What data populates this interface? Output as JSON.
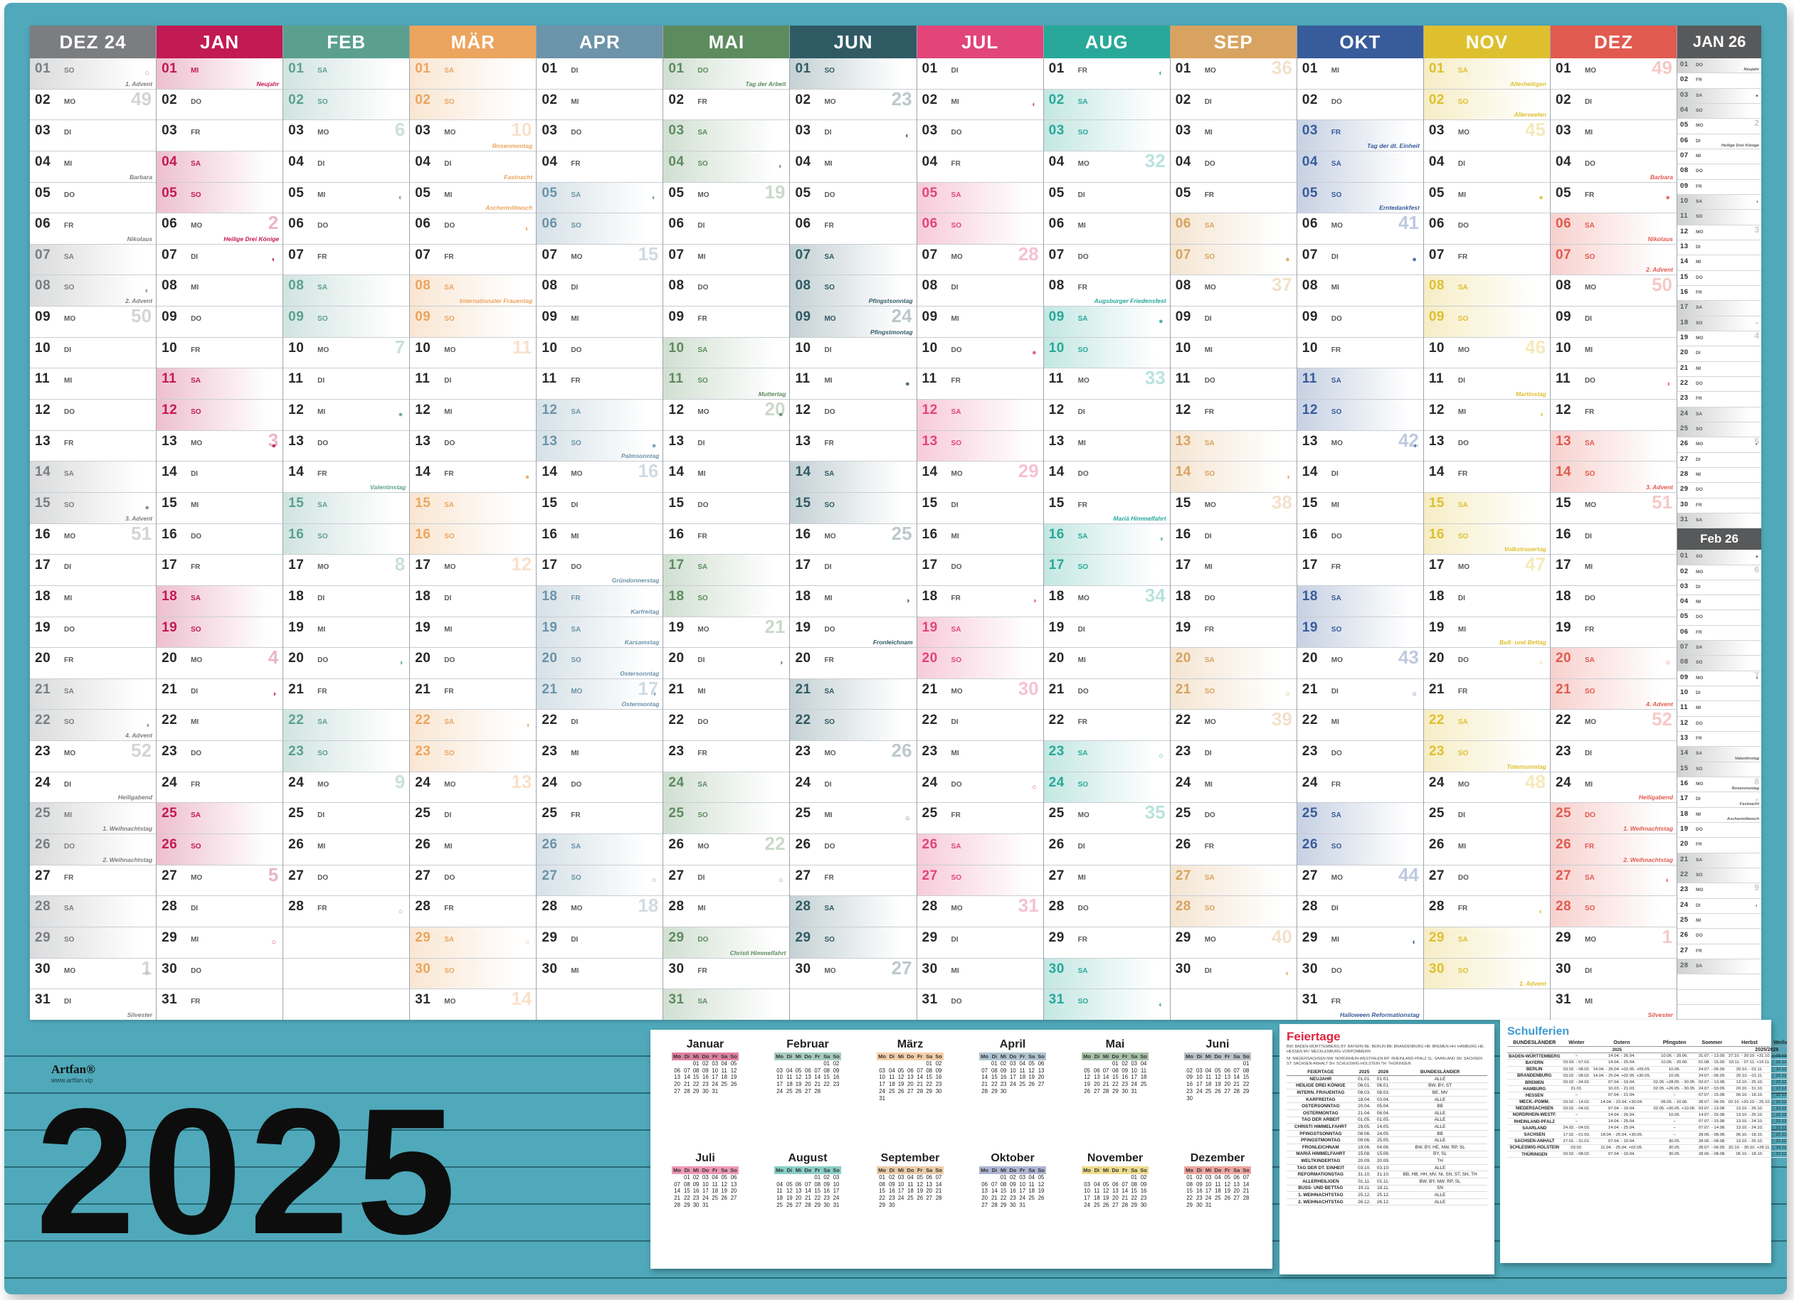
{
  "poster": {
    "year": "2025",
    "brand": "Artfan®",
    "brand_url": "www.artfan.vip",
    "frame_color": "#4fa9ba"
  },
  "weekdays": [
    "MO",
    "DI",
    "MI",
    "DO",
    "FR",
    "SA",
    "SO"
  ],
  "mini_weekdays": [
    "Mo",
    "Di",
    "Mi",
    "Do",
    "Fr",
    "Sa",
    "So"
  ],
  "months": [
    {
      "label": "DEZ 24",
      "color": "#7b7d81",
      "start": 6,
      "days": 31,
      "kw": {
        "2": "49",
        "9": "50",
        "16": "51",
        "23": "52",
        "30": "1"
      },
      "notes": {
        "1": "1. Advent",
        "4": "Barbara",
        "6": "Nikolaus",
        "8": "2. Advent",
        "15": "3. Advent",
        "22": "4. Advent",
        "24": "Heiligabend",
        "25": "1. Weihnachtstag",
        "26": "2. Weihnachtstag",
        "31": "Silvester"
      },
      "moons": {
        "1": "○",
        "8": "◐",
        "15": "●",
        "22": "◑",
        "30": "○"
      },
      "hl": [
        25,
        26
      ]
    },
    {
      "label": "JAN",
      "color": "#c21a52",
      "start": 2,
      "days": 31,
      "kw": {
        "6": "2",
        "13": "3",
        "20": "4",
        "27": "5"
      },
      "notes": {
        "1": "Neujahr",
        "6": "Heilige Drei Könige"
      },
      "moons": {
        "7": "◐",
        "13": "●",
        "21": "◑",
        "29": "○"
      },
      "hl": [
        1
      ]
    },
    {
      "label": "FEB",
      "color": "#5ba08f",
      "start": 5,
      "days": 28,
      "kw": {
        "3": "6",
        "10": "7",
        "17": "8",
        "24": "9"
      },
      "notes": {
        "14": "Valentinstag"
      },
      "moons": {
        "5": "◐",
        "12": "●",
        "20": "◑",
        "28": "○"
      },
      "hl": []
    },
    {
      "label": "MÄR",
      "color": "#eba55f",
      "start": 5,
      "days": 31,
      "kw": {
        "3": "10",
        "10": "11",
        "17": "12",
        "24": "13",
        "31": "14"
      },
      "notes": {
        "3": "Rosenmontag",
        "4": "Fastnacht",
        "5": "Aschermittwoch",
        "8": "Internationaler Frauentag"
      },
      "moons": {
        "6": "◐",
        "14": "●",
        "22": "◑",
        "29": "○"
      },
      "hl": []
    },
    {
      "label": "APR",
      "color": "#6b93a9",
      "start": 1,
      "days": 30,
      "kw": {
        "7": "15",
        "14": "16",
        "21": "17",
        "28": "18"
      },
      "notes": {
        "13": "Palmsonntag",
        "17": "Gründonnerstag",
        "18": "Karfreitag",
        "19": "Karsamstag",
        "20": "Ostersonntag",
        "21": "Ostermontag"
      },
      "moons": {
        "5": "◐",
        "13": "●",
        "21": "◑",
        "27": "○"
      },
      "hl": [
        18,
        21
      ]
    },
    {
      "label": "MAI",
      "color": "#5c8b5e",
      "start": 3,
      "days": 31,
      "kw": {
        "5": "19",
        "12": "20",
        "19": "21",
        "26": "22"
      },
      "notes": {
        "1": "Tag der Arbeit",
        "11": "Muttertag",
        "29": "Christi Himmelfahrt"
      },
      "moons": {
        "4": "◐",
        "12": "●",
        "20": "◑",
        "27": "○"
      },
      "hl": [
        1,
        29
      ]
    },
    {
      "label": "JUN",
      "color": "#2f5a64",
      "start": 6,
      "days": 30,
      "kw": {
        "2": "23",
        "9": "24",
        "16": "25",
        "23": "26",
        "30": "27"
      },
      "notes": {
        "8": "Pfingstsonntag",
        "9": "Pfingstmontag",
        "19": "Fronleichnam"
      },
      "moons": {
        "3": "◐",
        "11": "●",
        "18": "◑",
        "25": "○"
      },
      "hl": [
        9
      ]
    },
    {
      "label": "JUL",
      "color": "#e14579",
      "start": 1,
      "days": 31,
      "kw": {
        "7": "28",
        "14": "29",
        "21": "30",
        "28": "31"
      },
      "notes": {},
      "moons": {
        "2": "◐",
        "10": "●",
        "18": "◑",
        "24": "○"
      },
      "hl": []
    },
    {
      "label": "AUG",
      "color": "#28a899",
      "start": 4,
      "days": 31,
      "kw": {
        "4": "32",
        "11": "33",
        "18": "34",
        "25": "35"
      },
      "notes": {
        "8": "Augsburger Friedensfest",
        "15": "Mariä Himmelfahrt"
      },
      "moons": {
        "1": "◐",
        "9": "●",
        "16": "◑",
        "23": "○",
        "31": "◐"
      },
      "hl": []
    },
    {
      "label": "SEP",
      "color": "#d8a360",
      "start": 0,
      "days": 30,
      "kw": {
        "1": "36",
        "8": "37",
        "15": "38",
        "22": "39",
        "29": "40"
      },
      "notes": {},
      "moons": {
        "7": "●",
        "14": "◑",
        "21": "○",
        "30": "◐"
      },
      "hl": []
    },
    {
      "label": "OKT",
      "color": "#385b9b",
      "start": 2,
      "days": 31,
      "kw": {
        "6": "41",
        "13": "42",
        "20": "43",
        "27": "44"
      },
      "notes": {
        "3": "Tag der dt. Einheit",
        "5": "Erntedankfest",
        "31": "Halloween Reformationstag"
      },
      "moons": {
        "7": "●",
        "13": "◑",
        "21": "○",
        "29": "◐"
      },
      "hl": [
        3
      ]
    },
    {
      "label": "NOV",
      "color": "#dec02f",
      "start": 5,
      "days": 30,
      "kw": {
        "3": "45",
        "10": "46",
        "17": "47",
        "24": "48"
      },
      "notes": {
        "1": "Allerheiligen",
        "2": "Allerseelen",
        "11": "Martinstag",
        "16": "Volkstrauertag",
        "19": "Buß- und Bettag",
        "23": "Totensonntag",
        "30": "1. Advent"
      },
      "moons": {
        "5": "●",
        "12": "◑",
        "20": "○",
        "28": "◐"
      },
      "hl": []
    },
    {
      "label": "DEZ",
      "color": "#e15a50",
      "start": 0,
      "days": 31,
      "kw": {
        "1": "49",
        "8": "50",
        "15": "51",
        "22": "52",
        "29": "1"
      },
      "notes": {
        "4": "Barbara",
        "6": "Nikolaus",
        "7": "2. Advent",
        "14": "3. Advent",
        "21": "4. Advent",
        "24": "Heiligabend",
        "25": "1. Weihnachtstag",
        "26": "2. Weihnachtstag",
        "31": "Silvester"
      },
      "moons": {
        "5": "●",
        "11": "◑",
        "20": "○",
        "27": "◐"
      },
      "hl": [
        25,
        26
      ]
    }
  ],
  "side": [
    {
      "label": "JAN 26",
      "color": "#58595b",
      "start": 3,
      "days": 31,
      "kw": {
        "5": "2",
        "12": "3",
        "19": "4",
        "26": "5"
      },
      "notes": {
        "1": "Neujahr",
        "6": "Heilige Drei Könige"
      },
      "moons": {
        "3": "●",
        "10": "◑",
        "18": "○",
        "26": "◐"
      },
      "hl": [
        1
      ]
    },
    {
      "label": "Feb 26",
      "color": "#58595b",
      "start": 6,
      "days": 28,
      "kw": {
        "2": "6",
        "9": "7",
        "16": "8",
        "23": "9"
      },
      "notes": {
        "14": "Valentinstag",
        "16": "Rosenmontag",
        "17": "Fastnacht",
        "18": "Aschermittwoch"
      },
      "moons": {
        "1": "●",
        "9": "◑",
        "17": "○",
        "24": "◐"
      },
      "hl": []
    }
  ],
  "minical": [
    {
      "name": "Januar",
      "color": "#c21a52",
      "start": 2,
      "days": 31
    },
    {
      "name": "Februar",
      "color": "#5ba08f",
      "start": 5,
      "days": 28
    },
    {
      "name": "März",
      "color": "#eba55f",
      "start": 5,
      "days": 31
    },
    {
      "name": "April",
      "color": "#6b93a9",
      "start": 1,
      "days": 30
    },
    {
      "name": "Mai",
      "color": "#5c8b5e",
      "start": 3,
      "days": 31
    },
    {
      "name": "Juni",
      "color": "#7f8e99",
      "start": 6,
      "days": 30
    },
    {
      "name": "Juli",
      "color": "#e14579",
      "start": 1,
      "days": 31
    },
    {
      "name": "August",
      "color": "#28a899",
      "start": 4,
      "days": 31
    },
    {
      "name": "September",
      "color": "#d8a360",
      "start": 0,
      "days": 30
    },
    {
      "name": "Oktober",
      "color": "#6d79b0",
      "start": 2,
      "days": 31
    },
    {
      "name": "November",
      "color": "#dec02f",
      "start": 5,
      "days": 30
    },
    {
      "name": "Dezember",
      "color": "#e15a50",
      "start": 0,
      "days": 31
    }
  ],
  "feiertage": {
    "title": "Feiertage",
    "legend_line1": "BW: BADEN-WÜRTTEMBERG  BY: BAYERN  BE: BERLIN  BB: BRANDENBURG  HB: BREMEN  HH: HAMBURG  HE: HESSEN  MV: MECKLENBURG-VORPOMMERN",
    "legend_line2": "NI: NIEDERSACHSEN  NW: NORDRHEIN-WESTFALEN  RP: RHEINLAND-PFALZ  SL: SAARLAND  SN: SACHSEN  ST: SACHSEN-ANHALT  SH: SCHLESWIG-HOLSTEIN  TH: THÜRINGEN",
    "headers": [
      "FEIERTAGE",
      "2025",
      "2026",
      "BUNDESLÄNDER"
    ],
    "rows": [
      [
        "NEUJAHR",
        "01.01.",
        "01.01.",
        "ALLE"
      ],
      [
        "HEILIGE DREI KÖNIGE",
        "06.01.",
        "06.01.",
        "BW, BY, ST"
      ],
      [
        "INTERN. FRAUENTAG",
        "08.03.",
        "08.03.",
        "BE, MV"
      ],
      [
        "KARFREITAG",
        "18.04.",
        "03.04.",
        "ALLE"
      ],
      [
        "OSTERSONNTAG",
        "20.04.",
        "05.04.",
        "BB"
      ],
      [
        "OSTERMONTAG",
        "21.04.",
        "06.04.",
        "ALLE"
      ],
      [
        "TAG DER ARBEIT",
        "01.05.",
        "01.05.",
        "ALLE"
      ],
      [
        "CHRISTI HIMMELFAHRT",
        "29.05.",
        "14.05.",
        "ALLE"
      ],
      [
        "PFINGSTSONNTAG",
        "08.06.",
        "24.05.",
        "BB"
      ],
      [
        "PFINGSTMONTAG",
        "09.06.",
        "25.05.",
        "ALLE"
      ],
      [
        "FRONLEICHNAM",
        "19.06.",
        "04.06.",
        "BW, BY, HE, NW, RP, SL"
      ],
      [
        "MARIÄ HIMMELFAHRT",
        "15.08.",
        "15.08.",
        "BY, SL"
      ],
      [
        "WELTKINDERTAG",
        "20.09.",
        "20.09.",
        "TH"
      ],
      [
        "TAG DER DT. EINHEIT",
        "03.10.",
        "03.10.",
        "ALLE"
      ],
      [
        "REFORMATIONSTAG",
        "31.10.",
        "31.10.",
        "BB, HB, HH, MV, NI, SN, ST, SH, TH"
      ],
      [
        "ALLERHEILIGEN",
        "01.11.",
        "01.11.",
        "BW, BY, NW, RP, SL"
      ],
      [
        "BUSS- UND BETTAG",
        "19.11.",
        "18.11.",
        "SN"
      ],
      [
        "1. WEIHNACHTSTAG",
        "25.12.",
        "25.12.",
        "ALLE"
      ],
      [
        "2. WEIHNACHTSTAG",
        "26.12.",
        "26.12.",
        "ALLE"
      ]
    ]
  },
  "schulferien": {
    "title": "Schulferien",
    "headers": [
      "BUNDESLÄNDER",
      "Winter",
      "Ostern",
      "Pfingsten",
      "Sommer",
      "Herbst",
      "Weihnachten"
    ],
    "year_label": "2025",
    "year_label2": "2025/2026",
    "rows": [
      [
        "BADEN-WÜRTTEMBERG",
        "–",
        "14.04. - 26.04.",
        "10.06. - 20.06.",
        "31.07. - 13.09.",
        "27.10. - 30.10. +31.10.",
        "22.12. - 05.01."
      ],
      [
        "BAYERN",
        "03.03. - 07.03.",
        "14.04. - 25.04.",
        "10.06. - 20.06.",
        "01.08. - 15.09.",
        "03.11. - 07.11. +19.11.",
        "22.12. - 05.01."
      ],
      [
        "BERLIN",
        "03.02. - 08.02.",
        "14.04. - 25.04. +02.05. +09.05.",
        "10.06.",
        "24.07. - 06.09.",
        "20.10. - 01.11.",
        "22.12. - 02.01."
      ],
      [
        "BRANDENBURG",
        "03.02. - 08.02.",
        "14.04. - 25.04. +02.05. +30.05.",
        "10.06.",
        "24.07. - 06.09.",
        "20.10. - 01.11.",
        "22.12. - 02.01."
      ],
      [
        "BREMEN",
        "03.02. - 04.02.",
        "07.04. - 19.04.",
        "02.05. +28.05. - 30.05.",
        "03.07. - 13.08.",
        "13.10. - 25.10.",
        "22.12. - 05.01."
      ],
      [
        "HAMBURG",
        "31.01.",
        "10.03. - 21.03.",
        "02.05. +26.05. - 30.05.",
        "24.07. - 03.09.",
        "20.10. - 31.10.",
        "17.12. - 02.01."
      ],
      [
        "HESSEN",
        "–",
        "07.04. - 21.04.",
        "–",
        "07.07. - 15.08.",
        "06.10. - 18.10.",
        "22.12. - 10.01."
      ],
      [
        "MECK.-POMM.",
        "03.02. - 14.02.",
        "14.04. - 23.04. +30.04.",
        "06.06. - 10.06.",
        "28.07. - 06.09.",
        "02.10. +20.10. - 25.10.",
        "22.12. - 05.01."
      ],
      [
        "NIEDERSACHSEN",
        "03.02. - 04.02.",
        "07.04. - 19.04.",
        "02.05. +30.05. +10.06.",
        "03.07. - 13.08.",
        "13.10. - 25.10.",
        "22.12. - 05.01."
      ],
      [
        "NORDRHEIN-WESTF.",
        "–",
        "14.04. - 26.04.",
        "10.06.",
        "14.07. - 26.08.",
        "13.10. - 25.10.",
        "22.12. - 06.01."
      ],
      [
        "RHEINLAND-PFALZ",
        "–",
        "14.04. - 25.04.",
        "–",
        "07.07. - 15.08.",
        "13.10. - 24.10.",
        "22.12. - 07.01."
      ],
      [
        "SAARLAND",
        "24.02. - 04.03.",
        "14.04. - 25.04.",
        "–",
        "07.07. - 14.08.",
        "13.10. - 24.10.",
        "22.12. - 02.01."
      ],
      [
        "SACHSEN",
        "17.02. - 01.03.",
        "18.04. - 25.04. +30.05.",
        "–",
        "28.06. - 08.08.",
        "06.10. - 18.10.",
        "22.12. - 02.01."
      ],
      [
        "SACHSEN-ANHALT",
        "27.01. - 31.01.",
        "07.04. - 19.04.",
        "30.05.",
        "28.06. - 08.08.",
        "13.10. - 25.10.",
        "22.12. - 05.01."
      ],
      [
        "SCHLESWIG-HOLSTEIN",
        "03.02.",
        "11.04. - 25.04. +02.05.",
        "30.05.",
        "28.07. - 06.09.",
        "20.10. - 30.10. +28.11.",
        "19.12. - 06.01."
      ],
      [
        "THÜRINGEN",
        "03.02. - 08.02.",
        "07.04. - 19.04.",
        "30.05.",
        "28.06. - 08.08.",
        "06.10. - 18.10.",
        "22.12. - 03.01."
      ]
    ]
  }
}
